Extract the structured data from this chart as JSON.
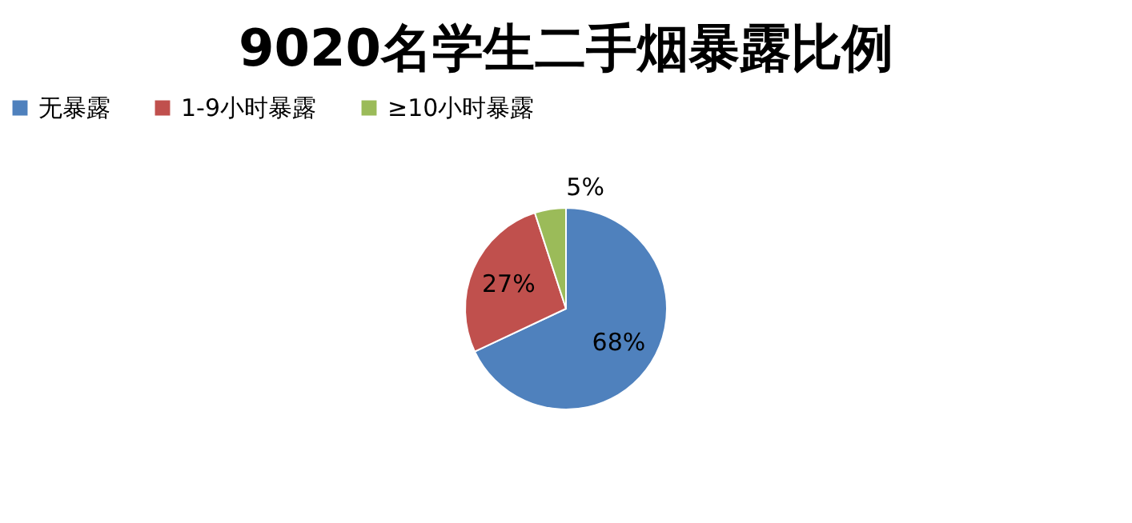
{
  "chart_data": {
    "type": "pie",
    "title": "9020名学生二手烟暴露比例",
    "categories": [
      "无暴露",
      "1-9小时暴露",
      "≥10小时暴露"
    ],
    "values": [
      68,
      27,
      5
    ],
    "colors": [
      "#4f81bd",
      "#c0504d",
      "#9bbb59"
    ],
    "value_labels": [
      "68%",
      "27%",
      "5%"
    ],
    "legend": "top"
  }
}
